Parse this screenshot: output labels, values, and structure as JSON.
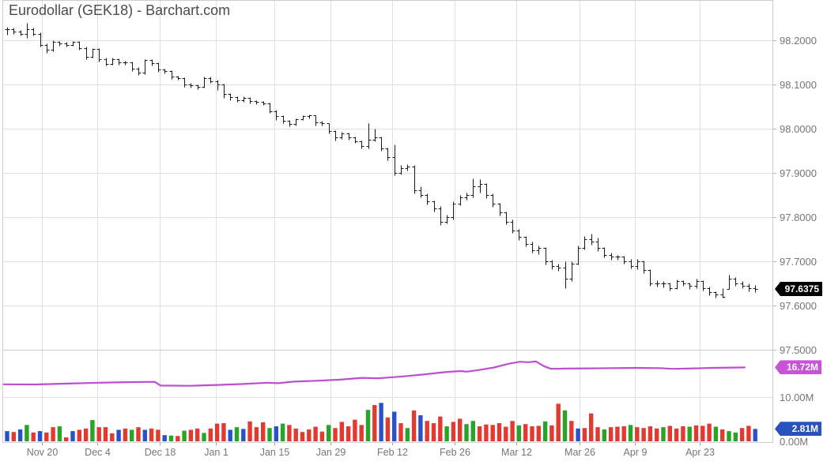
{
  "title": "Eurodollar (GEK18) - Barchart.com",
  "badges": {
    "last_price": "97.6375",
    "open_interest": "16.72M",
    "volume": "2.81M"
  },
  "colors": {
    "up": "#28a428",
    "down": "#e23a30",
    "neutral": "#2a52c8",
    "oi_line": "#bc4fd1",
    "price_badge_bg": "#000000",
    "oi_badge_bg": "#c654d4",
    "volume_badge_bg": "#2a52be",
    "ohlc_bar": "#1a1a1a",
    "grid": "#e0e0e0",
    "border": "#cccccc",
    "axis_text": "#757575",
    "title_text": "#4b4b4b"
  },
  "chart_data": {
    "type": "ohlc-with-volume-and-open-interest",
    "title": "Eurodollar (GEK18) - Barchart.com",
    "symbol": "GEK18",
    "last_price": 97.6375,
    "last_open_interest_m": 16.72,
    "last_volume_m": 2.81,
    "price_axis": {
      "min": 97.5,
      "max": 98.2,
      "ticks": [
        {
          "v": 98.2,
          "label": "98.2000"
        },
        {
          "v": 98.1,
          "label": "98.1000"
        },
        {
          "v": 98.0,
          "label": "98.0000"
        },
        {
          "v": 97.9,
          "label": "97.9000"
        },
        {
          "v": 97.8,
          "label": "97.8000"
        },
        {
          "v": 97.7,
          "label": "97.7000"
        },
        {
          "v": 97.6,
          "label": "97.6000"
        },
        {
          "v": 97.5,
          "label": "97.5000"
        }
      ]
    },
    "volume_axis": {
      "max_value_m": 20.7,
      "ticks": [
        {
          "v": 10,
          "label": "10.00M"
        },
        {
          "v": 0,
          "label": "0.00M"
        }
      ]
    },
    "x_axis": {
      "ticks": [
        {
          "label": "Nov 20",
          "i": 5.3
        },
        {
          "label": "Dec 4",
          "i": 13.7
        },
        {
          "label": "Dec 18",
          "i": 23.3
        },
        {
          "label": "Jan 1",
          "i": 31.8
        },
        {
          "label": "Jan 15",
          "i": 40.7
        },
        {
          "label": "Jan 29",
          "i": 49.3
        },
        {
          "label": "Feb 12",
          "i": 58.7
        },
        {
          "label": "Feb 26",
          "i": 68.2
        },
        {
          "label": "Mar 12",
          "i": 77.6
        },
        {
          "label": "Mar 26",
          "i": 87.2
        },
        {
          "label": "Apr 9",
          "i": 95.7
        },
        {
          "label": "Apr 23",
          "i": 105.5
        }
      ]
    },
    "bars_hlc": [
      [
        98.23,
        98.213,
        98.225
      ],
      [
        98.228,
        98.215,
        98.22
      ],
      [
        98.223,
        98.21,
        98.215
      ],
      [
        98.24,
        98.205,
        98.225
      ],
      [
        98.228,
        98.21,
        98.215
      ],
      [
        98.218,
        98.185,
        98.19
      ],
      [
        98.193,
        98.172,
        98.178
      ],
      [
        98.2,
        98.175,
        98.197
      ],
      [
        98.199,
        98.188,
        98.193
      ],
      [
        98.196,
        98.185,
        98.19
      ],
      [
        98.199,
        98.187,
        98.196
      ],
      [
        98.198,
        98.178,
        98.182
      ],
      [
        98.185,
        98.158,
        98.163
      ],
      [
        98.183,
        98.16,
        98.18
      ],
      [
        98.182,
        98.152,
        98.157
      ],
      [
        98.16,
        98.142,
        98.147
      ],
      [
        98.16,
        98.144,
        98.157
      ],
      [
        98.159,
        98.145,
        98.15
      ],
      [
        98.153,
        98.145,
        98.15
      ],
      [
        98.152,
        98.131,
        98.136
      ],
      [
        98.139,
        98.122,
        98.127
      ],
      [
        98.158,
        98.124,
        98.155
      ],
      [
        98.157,
        98.143,
        98.148
      ],
      [
        98.15,
        98.129,
        98.134
      ],
      [
        98.136,
        98.125,
        98.13
      ],
      [
        98.132,
        98.112,
        98.117
      ],
      [
        98.119,
        98.11,
        98.115
      ],
      [
        98.116,
        98.095,
        98.1
      ],
      [
        98.103,
        98.092,
        98.098
      ],
      [
        98.1,
        98.09,
        98.095
      ],
      [
        98.118,
        98.093,
        98.115
      ],
      [
        98.117,
        98.103,
        98.108
      ],
      [
        98.11,
        98.087,
        98.1
      ],
      [
        98.102,
        98.07,
        98.078
      ],
      [
        98.08,
        98.065,
        98.072
      ],
      [
        98.074,
        98.06,
        98.065
      ],
      [
        98.073,
        98.061,
        98.07
      ],
      [
        98.071,
        98.057,
        98.062
      ],
      [
        98.064,
        98.055,
        98.06
      ],
      [
        98.062,
        98.053,
        98.058
      ],
      [
        98.059,
        98.035,
        98.04
      ],
      [
        98.042,
        98.02,
        98.028
      ],
      [
        98.03,
        98.013,
        98.018
      ],
      [
        98.019,
        98.005,
        98.01
      ],
      [
        98.024,
        98.007,
        98.022
      ],
      [
        98.031,
        98.019,
        98.028
      ],
      [
        98.033,
        98.024,
        98.03
      ],
      [
        98.031,
        98.008,
        98.015
      ],
      [
        98.017,
        98.007,
        98.012
      ],
      [
        98.013,
        97.99,
        97.995
      ],
      [
        97.996,
        97.974,
        97.98
      ],
      [
        97.993,
        97.976,
        97.99
      ],
      [
        97.991,
        97.975,
        97.98
      ],
      [
        97.982,
        97.967,
        97.972
      ],
      [
        97.974,
        97.955,
        97.96
      ],
      [
        98.012,
        97.955,
        97.975
      ],
      [
        98.0,
        97.972,
        97.98
      ],
      [
        97.982,
        97.95,
        97.955
      ],
      [
        97.958,
        97.928,
        97.935
      ],
      [
        97.965,
        97.895,
        97.9
      ],
      [
        97.917,
        97.897,
        97.91
      ],
      [
        97.92,
        97.905,
        97.915
      ],
      [
        97.917,
        97.853,
        97.86
      ],
      [
        97.87,
        97.845,
        97.85
      ],
      [
        97.853,
        97.828,
        97.835
      ],
      [
        97.838,
        97.813,
        97.82
      ],
      [
        97.825,
        97.783,
        97.79
      ],
      [
        97.805,
        97.785,
        97.8
      ],
      [
        97.835,
        97.795,
        97.83
      ],
      [
        97.85,
        97.826,
        97.845
      ],
      [
        97.855,
        97.84,
        97.85
      ],
      [
        97.888,
        97.845,
        97.87
      ],
      [
        97.885,
        97.855,
        97.875
      ],
      [
        97.877,
        97.843,
        97.85
      ],
      [
        97.853,
        97.824,
        97.83
      ],
      [
        97.833,
        97.804,
        97.81
      ],
      [
        97.813,
        97.784,
        97.79
      ],
      [
        97.794,
        97.764,
        97.77
      ],
      [
        97.773,
        97.749,
        97.755
      ],
      [
        97.758,
        97.734,
        97.74
      ],
      [
        97.744,
        97.719,
        97.725
      ],
      [
        97.735,
        97.716,
        97.73
      ],
      [
        97.733,
        97.693,
        97.7
      ],
      [
        97.704,
        97.683,
        97.69
      ],
      [
        97.694,
        97.678,
        97.685
      ],
      [
        97.7,
        97.64,
        97.66
      ],
      [
        97.7,
        97.655,
        97.695
      ],
      [
        97.735,
        97.693,
        97.73
      ],
      [
        97.757,
        97.727,
        97.75
      ],
      [
        97.762,
        97.738,
        97.745
      ],
      [
        97.753,
        97.723,
        97.73
      ],
      [
        97.733,
        97.709,
        97.715
      ],
      [
        97.72,
        97.703,
        97.71
      ],
      [
        97.715,
        97.704,
        97.71
      ],
      [
        97.712,
        97.694,
        97.7
      ],
      [
        97.705,
        97.684,
        97.69
      ],
      [
        97.705,
        97.683,
        97.7
      ],
      [
        97.702,
        97.673,
        97.68
      ],
      [
        97.683,
        97.644,
        97.65
      ],
      [
        97.657,
        97.642,
        97.65
      ],
      [
        97.655,
        97.641,
        97.65
      ],
      [
        97.652,
        97.634,
        97.64
      ],
      [
        97.659,
        97.637,
        97.655
      ],
      [
        97.658,
        97.644,
        97.65
      ],
      [
        97.652,
        97.638,
        97.645
      ],
      [
        97.66,
        97.64,
        97.655
      ],
      [
        97.657,
        97.634,
        97.64
      ],
      [
        97.643,
        97.623,
        97.63
      ],
      [
        97.633,
        97.618,
        97.625
      ],
      [
        97.64,
        97.617,
        97.62
      ],
      [
        97.67,
        97.638,
        97.66
      ],
      [
        97.664,
        97.644,
        97.65
      ],
      [
        97.655,
        97.639,
        97.645
      ],
      [
        97.65,
        97.633,
        97.64
      ],
      [
        97.647,
        97.63,
        97.6375
      ]
    ],
    "volume_m": [
      2.3,
      2.1,
      2.7,
      3.7,
      2.0,
      2.3,
      2.0,
      3.2,
      3.4,
      0.9,
      2.3,
      2.6,
      2.9,
      4.8,
      3.2,
      3.2,
      1.8,
      2.6,
      2.9,
      2.6,
      3.2,
      2.6,
      2.9,
      2.6,
      1.4,
      1.3,
      1.2,
      2.4,
      2.6,
      2.9,
      1.9,
      2.9,
      4.0,
      4.1,
      2.6,
      3.2,
      2.8,
      4.5,
      3.2,
      4.3,
      3.0,
      3.4,
      4.0,
      3.7,
      2.9,
      2.1,
      2.7,
      3.3,
      2.2,
      3.7,
      3.0,
      4.4,
      3.4,
      4.9,
      3.7,
      7.1,
      8.2,
      8.7,
      5.4,
      6.7,
      4.1,
      3.0,
      7.0,
      5.9,
      4.6,
      4.1,
      5.6,
      3.4,
      4.4,
      5.1,
      3.9,
      4.6,
      3.4,
      3.8,
      3.7,
      4.1,
      3.3,
      4.6,
      3.6,
      3.9,
      3.4,
      3.5,
      4.5,
      3.6,
      8.5,
      7.0,
      4.6,
      2.9,
      3.0,
      6.3,
      3.2,
      2.7,
      3.2,
      3.3,
      3.4,
      3.7,
      3.2,
      3.0,
      3.4,
      2.9,
      3.2,
      3.5,
      2.9,
      3.4,
      3.3,
      3.6,
      3.5,
      4.0,
      3.3,
      2.7,
      2.3,
      2.0,
      3.0,
      3.5,
      2.81
    ],
    "volume_colors": "brbgrbrrgrbrrgrrrbrgrbrrbgrgrrgrrrbgbrrrgbgrrrrrrgrrrrrgrbrbrgrbrrrgrrggrrrrrrgrrrgrrgrbrrrgrrrgrrrrgrrrgrrrgrggrrb",
    "open_interest_points": [
      [
        -0.5,
        12.9
      ],
      [
        4.3,
        12.85
      ],
      [
        9.2,
        13.05
      ],
      [
        14,
        13.25
      ],
      [
        18.8,
        13.4
      ],
      [
        22.5,
        13.45
      ],
      [
        23.4,
        12.6
      ],
      [
        27.8,
        12.55
      ],
      [
        32,
        12.75
      ],
      [
        35.7,
        12.95
      ],
      [
        39.6,
        13.25
      ],
      [
        41.3,
        13.15
      ],
      [
        43.7,
        13.5
      ],
      [
        47.1,
        13.7
      ],
      [
        50.7,
        13.95
      ],
      [
        54.1,
        14.35
      ],
      [
        56.5,
        14.25
      ],
      [
        59.8,
        14.6
      ],
      [
        63.4,
        15.1
      ],
      [
        67,
        15.7
      ],
      [
        69.2,
        15.9
      ],
      [
        70,
        15.75
      ],
      [
        71.8,
        16.1
      ],
      [
        74.2,
        16.7
      ],
      [
        76.6,
        17.6
      ],
      [
        78.2,
        18.0
      ],
      [
        79.4,
        17.9
      ],
      [
        80.6,
        18.05
      ],
      [
        81.8,
        17.0
      ],
      [
        82.9,
        16.4
      ],
      [
        85,
        16.45
      ],
      [
        88.7,
        16.5
      ],
      [
        92.3,
        16.55
      ],
      [
        95.9,
        16.6
      ],
      [
        99.5,
        16.55
      ],
      [
        101.3,
        16.4
      ],
      [
        103.7,
        16.45
      ],
      [
        107.3,
        16.6
      ],
      [
        110.4,
        16.68
      ],
      [
        112.4,
        16.72
      ]
    ]
  }
}
